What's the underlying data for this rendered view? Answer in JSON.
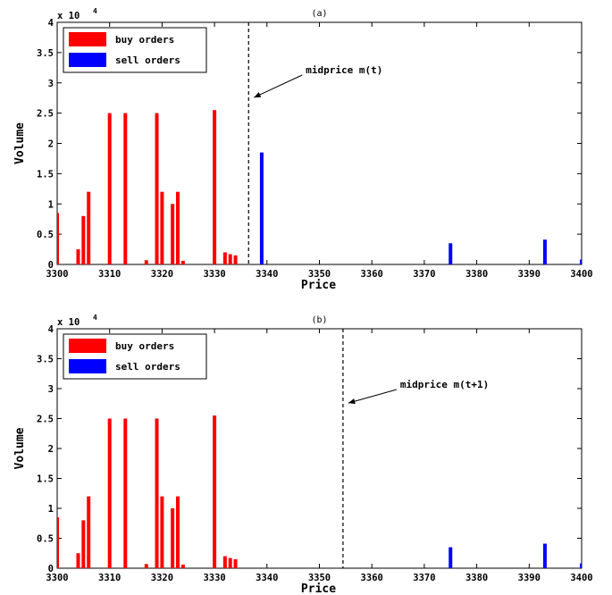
{
  "colors": {
    "buy": "#ff0000",
    "sell": "#0000ff",
    "axis": "#000000"
  },
  "chart_data": [
    {
      "type": "bar",
      "title": "(a)",
      "xlabel": "Price",
      "ylabel": "Volume",
      "exponent_label": "x 10",
      "exponent_power": "4",
      "xlim": [
        3300,
        3400
      ],
      "ylim": [
        0,
        40000
      ],
      "xticks": [
        "3300",
        "3310",
        "3320",
        "3330",
        "3340",
        "3350",
        "3360",
        "3370",
        "3380",
        "3390",
        "3400"
      ],
      "yticks": [
        "0",
        "0.5",
        "1",
        "1.5",
        "2",
        "2.5",
        "3",
        "3.5",
        "4"
      ],
      "legend": {
        "placement": "top-left",
        "buy_label": "buy orders",
        "sell_label": "sell orders"
      },
      "series": [
        {
          "name": "buy orders",
          "color": "#ff0000",
          "x": [
            3300,
            3304,
            3305,
            3306,
            3310,
            3313,
            3317,
            3319,
            3320,
            3322,
            3323,
            3324,
            3330,
            3332,
            3333,
            3334
          ],
          "values": [
            8500,
            2500,
            8000,
            12000,
            25000,
            25000,
            700,
            25000,
            12000,
            10000,
            12000,
            600,
            25500,
            2000,
            1700,
            1500
          ]
        },
        {
          "name": "sell orders",
          "color": "#0000ff",
          "x": [
            3339,
            3375,
            3393,
            3400
          ],
          "values": [
            18500,
            3500,
            4100,
            800
          ]
        }
      ],
      "midprice": {
        "x": 3336.5,
        "label": "midprice m(t)"
      }
    },
    {
      "type": "bar",
      "title": "(b)",
      "xlabel": "Price",
      "ylabel": "Volume",
      "exponent_label": "x 10",
      "exponent_power": "4",
      "xlim": [
        3300,
        3400
      ],
      "ylim": [
        0,
        40000
      ],
      "xticks": [
        "3300",
        "3310",
        "3320",
        "3330",
        "3340",
        "3350",
        "3360",
        "3370",
        "3380",
        "3390",
        "3400"
      ],
      "yticks": [
        "0",
        "0.5",
        "1",
        "1.5",
        "2",
        "2.5",
        "3",
        "3.5",
        "4"
      ],
      "legend": {
        "placement": "top-left",
        "buy_label": "buy orders",
        "sell_label": "sell orders"
      },
      "series": [
        {
          "name": "buy orders",
          "color": "#ff0000",
          "x": [
            3300,
            3304,
            3305,
            3306,
            3310,
            3313,
            3317,
            3319,
            3320,
            3322,
            3323,
            3324,
            3330,
            3332,
            3333,
            3334
          ],
          "values": [
            8500,
            2500,
            8000,
            12000,
            25000,
            25000,
            700,
            25000,
            12000,
            10000,
            12000,
            600,
            25500,
            2000,
            1700,
            1500
          ]
        },
        {
          "name": "sell orders",
          "color": "#0000ff",
          "x": [
            3375,
            3393,
            3400
          ],
          "values": [
            3500,
            4100,
            800
          ]
        }
      ],
      "midprice": {
        "x": 3354.5,
        "label": "midprice m(t+1)"
      }
    }
  ]
}
